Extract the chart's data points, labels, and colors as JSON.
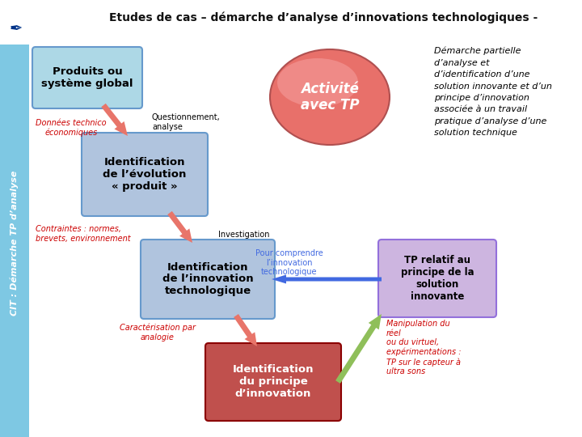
{
  "title": "Etudes de cas – démarche d’analyse d’innovations technologiques -",
  "sidebar_text": "CIT : Démarche TP d’analyse",
  "sidebar_color": "#7EC8E3",
  "bg_color": "#FFFFFF",
  "box1_text": "Produits ou\nsystème global",
  "box1_color": "#ADD8E6",
  "box1_border": "#6699CC",
  "box2_text": "Identification\nde l’évolution\n« produit »",
  "box2_color": "#B0C4DE",
  "box2_border": "#6699CC",
  "box3_text": "Identification\nde l’innovation\ntechnologique",
  "box3_color": "#B0C4DE",
  "box3_border": "#6699CC",
  "box4_text": "Identification\ndu principe\nd’innovation",
  "box4_color": "#C0504D",
  "box4_border": "#8B0000",
  "box5_text": "TP relatif au\nprincipe de la\nsolution\ninnovante",
  "box5_color": "#CDB5E0",
  "box5_border": "#9370DB",
  "ellipse_text": "Activité\navec TP",
  "ellipse_color": "#E8706A",
  "ellipse_highlight": "#F5A0A0",
  "label1": "Données technico\néconomiques",
  "label1_color": "#CC0000",
  "label2": "Questionnement,\nanalyse",
  "label2_color": "#000000",
  "label3": "Contraintes : normes,\nbrevets, environnement",
  "label3_color": "#CC0000",
  "label4": "Investigation",
  "label4_color": "#000000",
  "label5": "Pour comprendre\nl’innovation\ntechnologique",
  "label5_color": "#4169E1",
  "label6": "Caractérisation par\nanalogie",
  "label6_color": "#CC0000",
  "label7": "Manipulation du\nréel\nou du virtuel,\nexpérimentations :\nTP sur le capteur à\nultra sons",
  "label7_color": "#CC0000",
  "right_text": "Démarche partielle\nd’analyse et\nd’identification d’une\nsolution innovante et d’un\nprincipe d’innovation\nassociée à un travail\npratique d’analyse d’une\nsolution technique",
  "right_text_color": "#000000",
  "arrow_salmon": "#E8756A",
  "arrow_green": "#8FBF5A",
  "arrow_blue": "#4169E1"
}
